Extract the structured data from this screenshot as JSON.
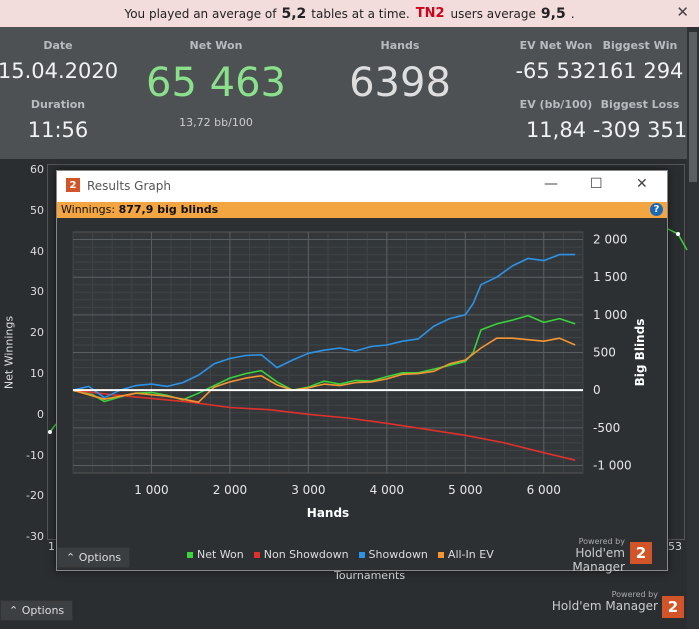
{
  "banner": {
    "prefix": "You played an average of",
    "avg_tables": "5,2",
    "middle": "tables at a time.",
    "group": "TN2",
    "suffix": "users average",
    "group_avg": "9,5",
    "end": ".",
    "close_icon": "close-icon"
  },
  "stats": {
    "date_label": "Date",
    "date": "15.04.2020",
    "duration_label": "Duration",
    "duration": "11:56",
    "net_won_label": "Net Won",
    "net_won": "65 463",
    "bb_per_100": "13,72 bb/100",
    "hands_label": "Hands",
    "hands": "6398",
    "ev_net_won_label": "EV Net Won",
    "ev_net_won": "-65 532",
    "ev_bb_label": "EV (bb/100)",
    "ev_bb": "11,84",
    "biggest_win_label": "Biggest Win",
    "biggest_win": "161 294",
    "biggest_loss_label": "Biggest Loss",
    "biggest_loss": "-309 351"
  },
  "background_chart": {
    "y_ticks": [
      "60",
      "50",
      "40",
      "30",
      "20",
      "10",
      "0",
      "-10",
      "-20",
      "-30"
    ],
    "ylabel": "Net Winnings",
    "xlabel": "Tournaments",
    "x_start": "1",
    "x_end": "53",
    "options": "Options",
    "powered_by": "Powered by",
    "brand": "Hold'em Manager",
    "logo": "2"
  },
  "dialog": {
    "title": "Results Graph",
    "logo": "2",
    "winnings_label": "Winnings:",
    "winnings_value": "877,9 big blinds",
    "options": "Options",
    "powered_by": "Powered by",
    "brand": "Hold'em Manager",
    "minimize": "—",
    "maximize": "☐",
    "close": "✕",
    "help": "?"
  },
  "chart_data": {
    "type": "line",
    "xlabel": "Hands",
    "ylabel": "Big Blinds",
    "xlim": [
      0,
      6500
    ],
    "ylim": [
      -1100,
      2100
    ],
    "x_ticks": [
      1000,
      2000,
      3000,
      4000,
      5000,
      6000
    ],
    "x_tick_labels": [
      "1 000",
      "2 000",
      "3 000",
      "4 000",
      "5 000",
      "6 000"
    ],
    "y_ticks": [
      2000,
      1500,
      1000,
      500,
      0,
      -500,
      -1000
    ],
    "y_tick_labels": [
      "2 000",
      "1 500",
      "1 000",
      "500",
      "0",
      "-500",
      "-1 000"
    ],
    "grid": true,
    "legend_position": "bottom",
    "series": [
      {
        "name": "Net Won",
        "color": "#39d33a",
        "x": [
          0,
          250,
          400,
          600,
          800,
          1000,
          1200,
          1400,
          1600,
          1800,
          2000,
          2200,
          2400,
          2600,
          2800,
          3000,
          3200,
          3400,
          3600,
          3800,
          4000,
          4200,
          4400,
          4600,
          4800,
          5000,
          5100,
          5200,
          5400,
          5600,
          5800,
          6000,
          6200,
          6400
        ],
        "y": [
          0,
          -60,
          -150,
          -90,
          -40,
          -30,
          -70,
          -130,
          -40,
          60,
          160,
          220,
          260,
          110,
          0,
          40,
          120,
          80,
          130,
          120,
          180,
          230,
          230,
          280,
          330,
          380,
          500,
          800,
          880,
          930,
          990,
          900,
          950,
          880
        ]
      },
      {
        "name": "Non Showdown",
        "color": "#e0302b",
        "x": [
          0,
          500,
          1000,
          1500,
          2000,
          2500,
          3000,
          3500,
          4000,
          4500,
          5000,
          5500,
          6000,
          6400
        ],
        "y": [
          0,
          -60,
          -110,
          -160,
          -230,
          -260,
          -320,
          -370,
          -440,
          -520,
          -600,
          -700,
          -830,
          -930
        ]
      },
      {
        "name": "Showdown",
        "color": "#2c93e8",
        "x": [
          0,
          200,
          400,
          600,
          800,
          1000,
          1200,
          1400,
          1600,
          1800,
          2000,
          2200,
          2400,
          2600,
          2800,
          3000,
          3200,
          3400,
          3600,
          3800,
          4000,
          4200,
          4400,
          4600,
          4800,
          5000,
          5100,
          5200,
          5400,
          5600,
          5800,
          6000,
          6200,
          6400
        ],
        "y": [
          0,
          50,
          -100,
          0,
          60,
          80,
          50,
          100,
          200,
          350,
          420,
          460,
          470,
          300,
          400,
          490,
          530,
          560,
          520,
          580,
          600,
          650,
          680,
          850,
          950,
          1000,
          1150,
          1400,
          1500,
          1650,
          1750,
          1720,
          1800,
          1800
        ]
      },
      {
        "name": "All-In EV",
        "color": "#f59630",
        "x": [
          0,
          400,
          800,
          1200,
          1600,
          1800,
          2000,
          2200,
          2400,
          2600,
          2800,
          3000,
          3200,
          3400,
          3600,
          3800,
          4000,
          4200,
          4400,
          4600,
          4800,
          5000,
          5100,
          5200,
          5400,
          5600,
          5800,
          6000,
          6200,
          6400
        ],
        "y": [
          0,
          -120,
          -40,
          -80,
          -160,
          40,
          110,
          160,
          190,
          70,
          0,
          30,
          80,
          60,
          100,
          110,
          150,
          210,
          220,
          250,
          350,
          400,
          480,
          560,
          690,
          690,
          670,
          650,
          690,
          600
        ]
      }
    ]
  }
}
